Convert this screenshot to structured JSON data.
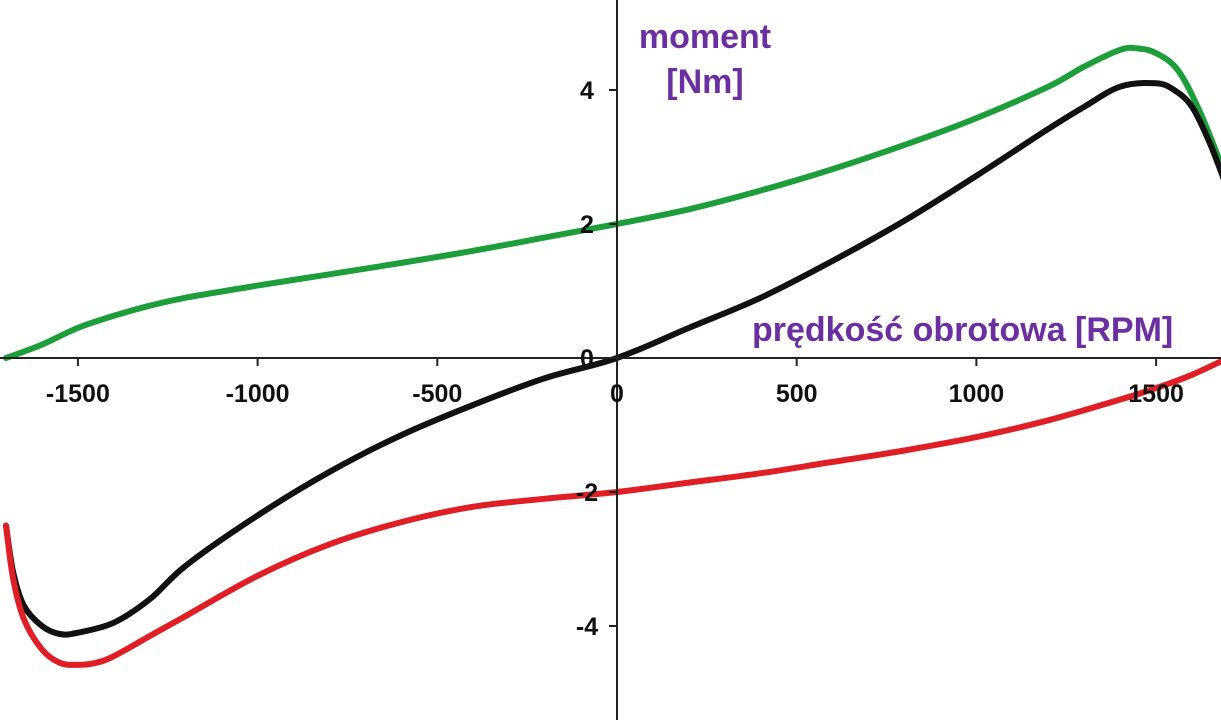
{
  "chart_data": {
    "type": "line",
    "title": "",
    "xlabel": "prędkość obrotowa [RPM]",
    "ylabel_line1": "moment",
    "ylabel_line2": "[Nm]",
    "xlim": [
      -1700,
      1700
    ],
    "ylim": [
      -5.4,
      5.4
    ],
    "x_ticks": [
      -1500,
      -1000,
      -500,
      0,
      500,
      1000,
      1500
    ],
    "y_ticks": [
      -4,
      -2,
      0,
      2,
      4
    ],
    "grid": false,
    "colors": {
      "axis": "#222222",
      "label": "#6a2fa0",
      "ticks": "#111111"
    },
    "series": [
      {
        "name": "green",
        "color": "#1e9e3a",
        "points": [
          [
            -1700,
            0.0
          ],
          [
            -1600,
            0.2
          ],
          [
            -1500,
            0.45
          ],
          [
            -1400,
            0.63
          ],
          [
            -1300,
            0.78
          ],
          [
            -1200,
            0.9
          ],
          [
            -1000,
            1.08
          ],
          [
            -800,
            1.25
          ],
          [
            -600,
            1.42
          ],
          [
            -400,
            1.6
          ],
          [
            -200,
            1.8
          ],
          [
            0,
            2.0
          ],
          [
            200,
            2.22
          ],
          [
            400,
            2.5
          ],
          [
            600,
            2.82
          ],
          [
            800,
            3.18
          ],
          [
            1000,
            3.58
          ],
          [
            1200,
            4.05
          ],
          [
            1300,
            4.35
          ],
          [
            1400,
            4.6
          ],
          [
            1450,
            4.62
          ],
          [
            1500,
            4.55
          ],
          [
            1560,
            4.3
          ],
          [
            1620,
            3.7
          ],
          [
            1680,
            2.9
          ],
          [
            1700,
            2.6
          ]
        ]
      },
      {
        "name": "black",
        "color": "#111111",
        "points": [
          [
            -1700,
            -2.5
          ],
          [
            -1680,
            -3.2
          ],
          [
            -1650,
            -3.7
          ],
          [
            -1600,
            -4.0
          ],
          [
            -1550,
            -4.12
          ],
          [
            -1500,
            -4.1
          ],
          [
            -1400,
            -3.95
          ],
          [
            -1300,
            -3.6
          ],
          [
            -1200,
            -3.1
          ],
          [
            -1000,
            -2.35
          ],
          [
            -800,
            -1.7
          ],
          [
            -600,
            -1.15
          ],
          [
            -400,
            -0.7
          ],
          [
            -200,
            -0.3
          ],
          [
            0,
            0.0
          ],
          [
            200,
            0.45
          ],
          [
            400,
            0.9
          ],
          [
            600,
            1.45
          ],
          [
            800,
            2.05
          ],
          [
            1000,
            2.72
          ],
          [
            1200,
            3.42
          ],
          [
            1300,
            3.75
          ],
          [
            1400,
            4.05
          ],
          [
            1500,
            4.1
          ],
          [
            1550,
            4.0
          ],
          [
            1600,
            3.75
          ],
          [
            1650,
            3.2
          ],
          [
            1700,
            2.5
          ]
        ]
      },
      {
        "name": "red",
        "color": "#e01e26",
        "points": [
          [
            -1700,
            -2.5
          ],
          [
            -1680,
            -3.3
          ],
          [
            -1650,
            -3.9
          ],
          [
            -1600,
            -4.35
          ],
          [
            -1550,
            -4.55
          ],
          [
            -1500,
            -4.58
          ],
          [
            -1450,
            -4.55
          ],
          [
            -1400,
            -4.45
          ],
          [
            -1300,
            -4.15
          ],
          [
            -1200,
            -3.85
          ],
          [
            -1000,
            -3.25
          ],
          [
            -800,
            -2.78
          ],
          [
            -600,
            -2.45
          ],
          [
            -400,
            -2.22
          ],
          [
            -200,
            -2.1
          ],
          [
            0,
            -2.0
          ],
          [
            200,
            -1.86
          ],
          [
            400,
            -1.72
          ],
          [
            600,
            -1.55
          ],
          [
            800,
            -1.38
          ],
          [
            1000,
            -1.18
          ],
          [
            1200,
            -0.93
          ],
          [
            1400,
            -0.62
          ],
          [
            1500,
            -0.45
          ],
          [
            1600,
            -0.25
          ],
          [
            1700,
            0.0
          ]
        ]
      }
    ]
  }
}
